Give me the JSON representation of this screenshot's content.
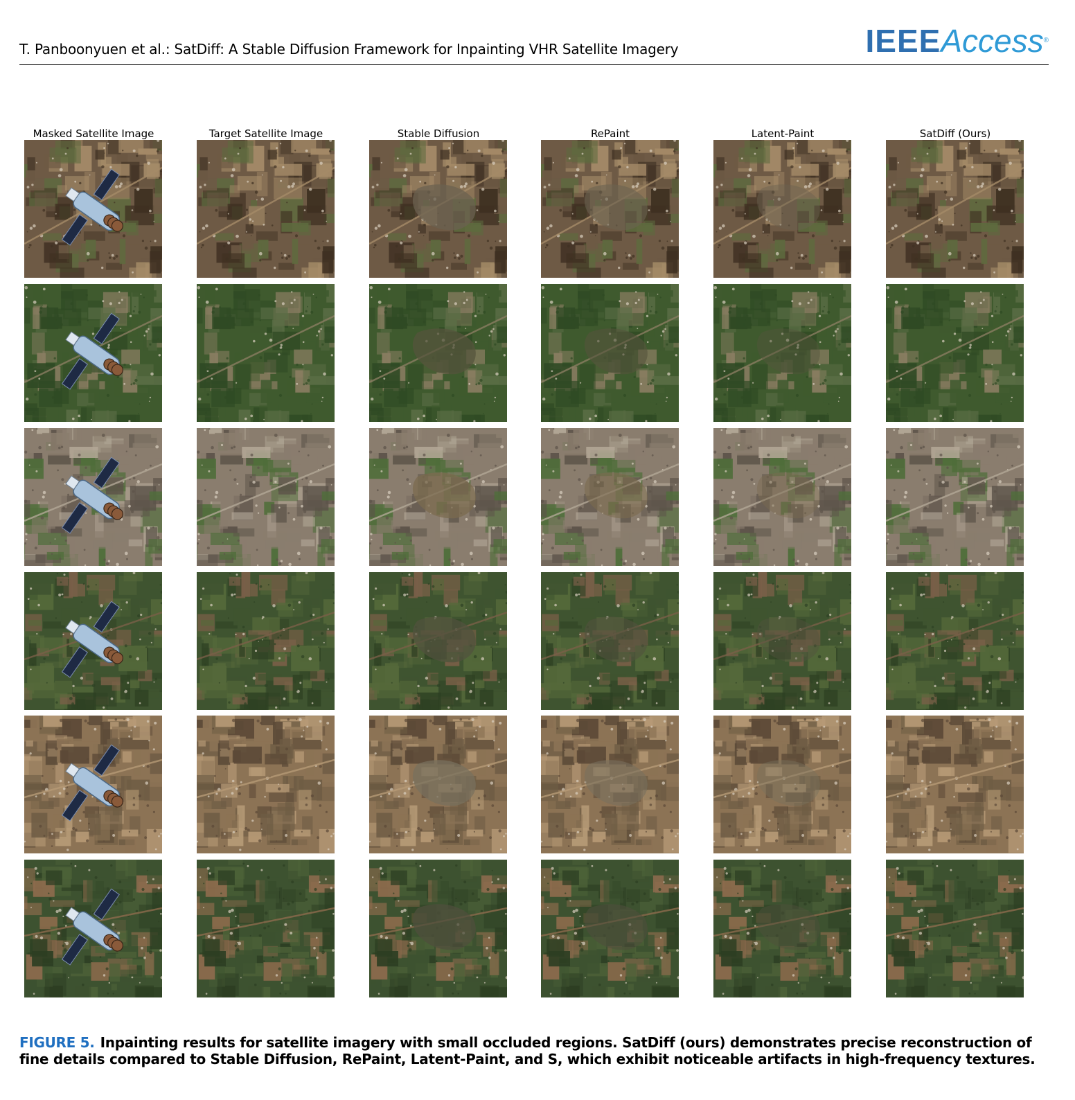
{
  "header": {
    "running_head": "T. Panboonyuen et al.: SatDiff: A Stable Diffusion Framework for Inpainting VHR Satellite Imagery",
    "logo_ieee": "IEEE",
    "logo_access": "Access"
  },
  "figure": {
    "columns": [
      {
        "title": "Masked Satellite Image",
        "kind": "masked"
      },
      {
        "title": "Target Satellite Image",
        "kind": "target"
      },
      {
        "title": "Stable Diffusion",
        "kind": "patch-strong"
      },
      {
        "title": "RePaint",
        "kind": "patch-medium"
      },
      {
        "title": "Latent-Paint",
        "kind": "patch-light"
      },
      {
        "title": "SatDiff (Ours)",
        "kind": "clean"
      }
    ],
    "rows": [
      {
        "scene": "farmland-brown",
        "base": "#6e5a45",
        "c1": "#3f3022",
        "c2": "#a58b68",
        "c3": "#5d6b3e",
        "patch": "#6b6250"
      },
      {
        "scene": "green-fields",
        "base": "#3f5a2e",
        "c1": "#2f4a24",
        "c2": "#8a7d62",
        "c3": "#5a6d45",
        "patch": "#55543c"
      },
      {
        "scene": "arid-urban",
        "base": "#8a7d6e",
        "c1": "#5c5349",
        "c2": "#b3a897",
        "c3": "#4f6e3a",
        "patch": "#7b6b4f"
      },
      {
        "scene": "forest-village",
        "base": "#3f5430",
        "c1": "#2e4123",
        "c2": "#7a6048",
        "c3": "#55693a",
        "patch": "#52523d"
      },
      {
        "scene": "arid-river",
        "base": "#8c7355",
        "c1": "#5b4937",
        "c2": "#b69a76",
        "c3": "#6e5c44",
        "patch": "#78705e"
      },
      {
        "scene": "forest-dense",
        "base": "#3d5230",
        "c1": "#2c3e22",
        "c2": "#8d6b4d",
        "c3": "#4d6238",
        "patch": "#4f4f3c"
      }
    ]
  },
  "caption": {
    "label": "FIGURE 5.",
    "text": "Inpainting results for satellite imagery with small occluded regions. SatDiff (ours) demonstrates precise reconstruction of fine details compared to Stable Diffusion, RePaint, Latent-Paint, and S, which exhibit noticeable artifacts in high-frequency textures."
  }
}
